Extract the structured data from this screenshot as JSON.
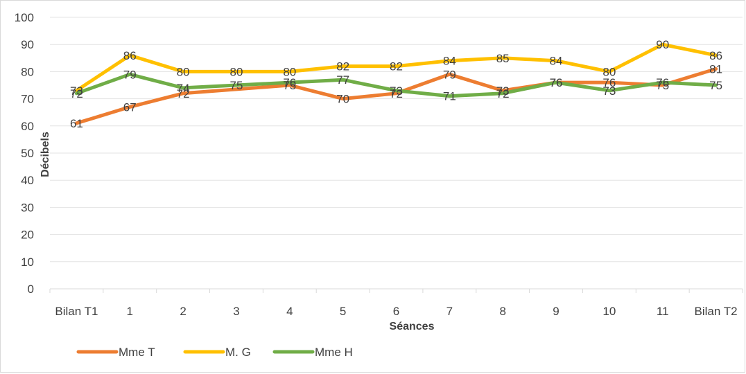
{
  "chart_data": {
    "type": "line",
    "title": "",
    "xlabel": "Séances",
    "ylabel": "Décibels",
    "ylim": [
      0,
      100
    ],
    "yticks": [
      "0",
      "10",
      "20",
      "30",
      "40",
      "50",
      "60",
      "70",
      "80",
      "90",
      "100"
    ],
    "grid": true,
    "legend_position": "bottom-left",
    "categories": [
      "Bilan T1",
      "1",
      "2",
      "3",
      "4",
      "5",
      "6",
      "7",
      "8",
      "9",
      "10",
      "11",
      "Bilan T2"
    ],
    "series": [
      {
        "name": "Mme T",
        "color": "#ed7d31",
        "values": [
          61,
          67,
          72,
          null,
          75,
          70,
          72,
          79,
          73,
          76,
          76,
          75,
          81
        ]
      },
      {
        "name": "M. G",
        "color": "#ffc000",
        "values": [
          73,
          86,
          80,
          80,
          80,
          82,
          82,
          84,
          85,
          84,
          80,
          90,
          86
        ]
      },
      {
        "name": "Mme H",
        "color": "#70ad47",
        "values": [
          72,
          79,
          74,
          75,
          76,
          77,
          73,
          71,
          72,
          76,
          73,
          76,
          75
        ]
      }
    ]
  }
}
